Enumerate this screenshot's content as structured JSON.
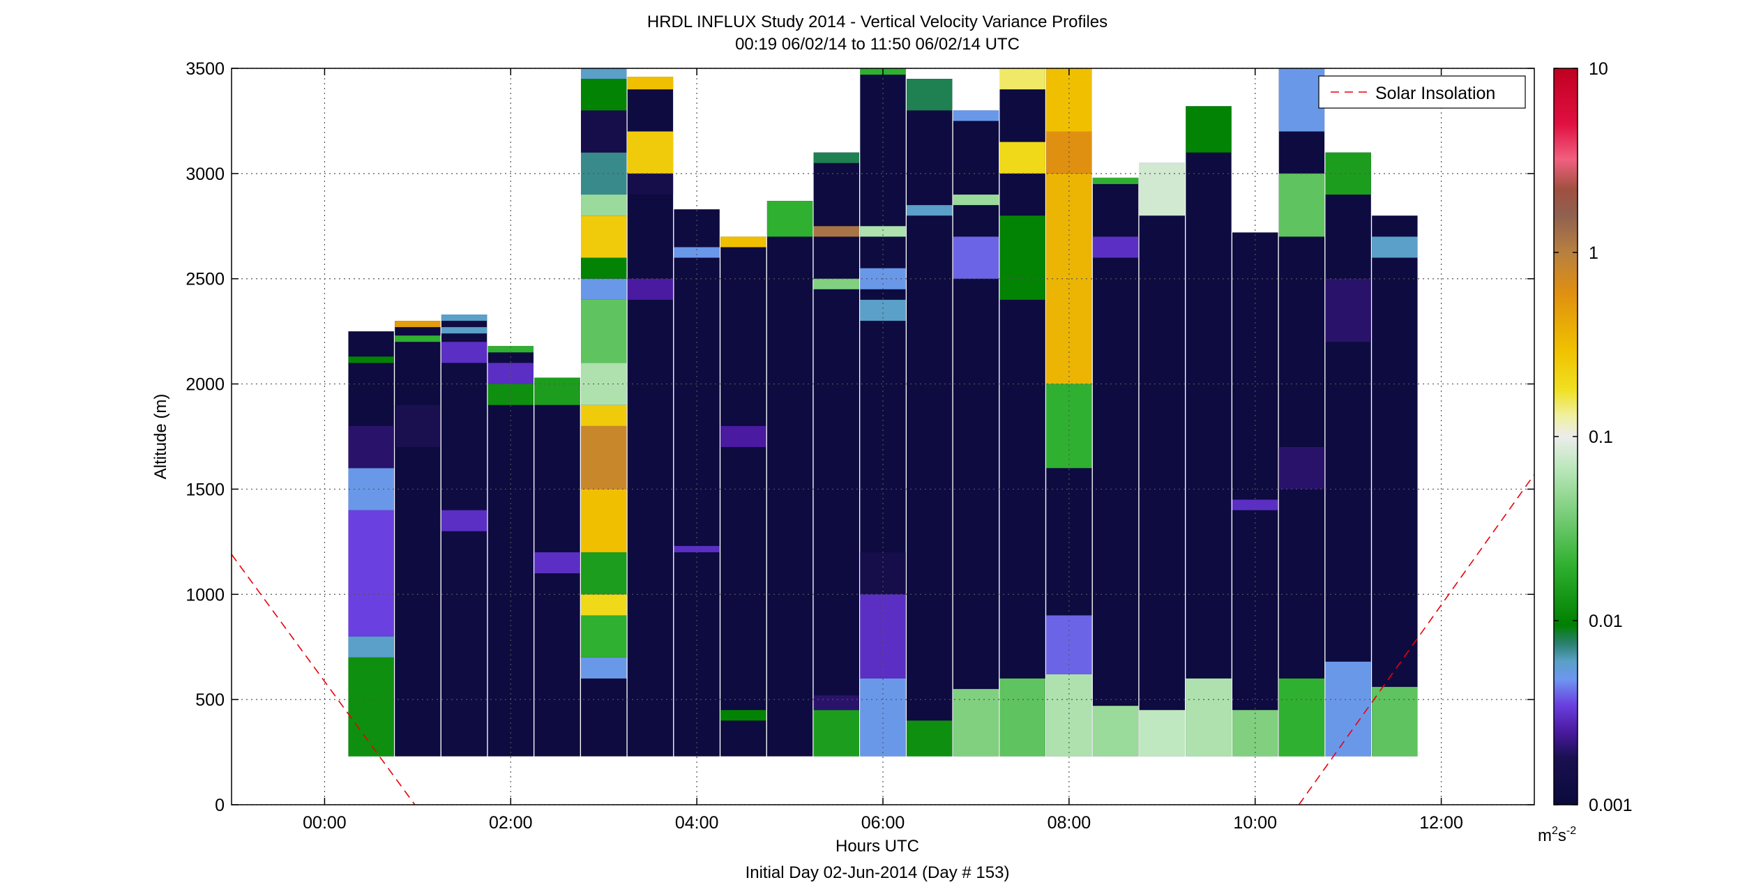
{
  "chart_data": {
    "type": "heatmap",
    "title": "HRDL INFLUX Study 2014 - Vertical Velocity Variance Profiles",
    "subtitle": "00:19 06/02/14 to 11:50 06/02/14  UTC",
    "xlabel": "Hours UTC",
    "xlabel2": "Initial Day 02-Jun-2014 (Day # 153)",
    "ylabel": "Altitude (m)",
    "xlim": [
      -1,
      13
    ],
    "ylim": [
      0,
      3500
    ],
    "x_ticks": [
      {
        "value": 0,
        "label": "00:00"
      },
      {
        "value": 2,
        "label": "02:00"
      },
      {
        "value": 4,
        "label": "04:00"
      },
      {
        "value": 6,
        "label": "06:00"
      },
      {
        "value": 8,
        "label": "08:00"
      },
      {
        "value": 10,
        "label": "10:00"
      },
      {
        "value": 12,
        "label": "12:00"
      }
    ],
    "y_ticks": [
      {
        "value": 0,
        "label": "0"
      },
      {
        "value": 500,
        "label": "500"
      },
      {
        "value": 1000,
        "label": "1000"
      },
      {
        "value": 1500,
        "label": "1500"
      },
      {
        "value": 2000,
        "label": "2000"
      },
      {
        "value": 2500,
        "label": "2500"
      },
      {
        "value": 3000,
        "label": "3000"
      },
      {
        "value": 3500,
        "label": "3500"
      }
    ],
    "grid": true,
    "legend": {
      "placement": "top-right",
      "entries": [
        "Solar Insolation"
      ],
      "color": "#e8000b",
      "style": "dashed"
    },
    "colorbar": {
      "scale": "log",
      "range": [
        0.001,
        10
      ],
      "ticks": [
        {
          "value": 0.001,
          "label": "0.001"
        },
        {
          "value": 0.01,
          "label": "0.01"
        },
        {
          "value": 0.1,
          "label": "0.1"
        },
        {
          "value": 1,
          "label": "1"
        },
        {
          "value": 10,
          "label": "10"
        }
      ],
      "unit_base": "m",
      "unit_exp1": "2",
      "unit_mid": "s",
      "unit_exp2": "-2",
      "stops": [
        [
          0.001,
          "#0a0a3c"
        ],
        [
          0.0018,
          "#1a1050"
        ],
        [
          0.0025,
          "#4a1aa0"
        ],
        [
          0.0035,
          "#6a40e0"
        ],
        [
          0.0048,
          "#6e96f0"
        ],
        [
          0.006,
          "#5aa0c8"
        ],
        [
          0.0075,
          "#2a8070"
        ],
        [
          0.0095,
          "#008000"
        ],
        [
          0.02,
          "#30b030"
        ],
        [
          0.04,
          "#80d080"
        ],
        [
          0.07,
          "#c0e8c0"
        ],
        [
          0.1,
          "#ececec"
        ],
        [
          0.13,
          "#f0f0a0"
        ],
        [
          0.18,
          "#f0e020"
        ],
        [
          0.3,
          "#f0c000"
        ],
        [
          0.6,
          "#e09010"
        ],
        [
          1.0,
          "#b88040"
        ],
        [
          1.6,
          "#906050"
        ],
        [
          2.2,
          "#a05040"
        ],
        [
          3.2,
          "#f06080"
        ],
        [
          5.0,
          "#e01040"
        ],
        [
          10,
          "#c00020"
        ]
      ]
    },
    "profiles": [
      {
        "time": 0.5,
        "bottom": 230,
        "top": 2250,
        "base": 0.0011,
        "cells": [
          [
            230,
            700,
            0.012
          ],
          [
            700,
            800,
            0.006
          ],
          [
            800,
            1400,
            0.0035
          ],
          [
            1400,
            1600,
            0.005
          ],
          [
            1600,
            1800,
            0.002
          ],
          [
            2100,
            2130,
            0.01
          ]
        ]
      },
      {
        "time": 1.0,
        "bottom": 230,
        "top": 2300,
        "base": 0.0011,
        "cells": [
          [
            1700,
            1900,
            0.0018
          ],
          [
            2200,
            2230,
            0.02
          ],
          [
            2270,
            2300,
            0.5
          ]
        ]
      },
      {
        "time": 1.5,
        "bottom": 230,
        "top": 2330,
        "base": 0.0012,
        "cells": [
          [
            1300,
            1400,
            0.003
          ],
          [
            2100,
            2200,
            0.003
          ],
          [
            2240,
            2270,
            0.006
          ],
          [
            2300,
            2330,
            0.006
          ]
        ]
      },
      {
        "time": 2.0,
        "bottom": 230,
        "top": 2180,
        "base": 0.0011,
        "cells": [
          [
            1900,
            2000,
            0.012
          ],
          [
            2000,
            2100,
            0.003
          ],
          [
            2150,
            2180,
            0.02
          ]
        ]
      },
      {
        "time": 2.5,
        "bottom": 230,
        "top": 2030,
        "base": 0.0011,
        "cells": [
          [
            1100,
            1200,
            0.003
          ],
          [
            1900,
            2030,
            0.015
          ]
        ]
      },
      {
        "time": 3.0,
        "bottom": 230,
        "top": 3500,
        "base": 0.0011,
        "cells": [
          [
            600,
            700,
            0.005
          ],
          [
            700,
            900,
            0.02
          ],
          [
            900,
            1000,
            0.2
          ],
          [
            1000,
            1200,
            0.015
          ],
          [
            1200,
            1500,
            0.3
          ],
          [
            1500,
            1800,
            0.8
          ],
          [
            1800,
            1900,
            0.25
          ],
          [
            1900,
            2100,
            0.06
          ],
          [
            2100,
            2400,
            0.03
          ],
          [
            2400,
            2500,
            0.005
          ],
          [
            2500,
            2600,
            0.01
          ],
          [
            2600,
            2800,
            0.25
          ],
          [
            2800,
            2900,
            0.05
          ],
          [
            2900,
            3100,
            0.007
          ],
          [
            3100,
            3300,
            0.0015
          ],
          [
            3300,
            3450,
            0.01
          ],
          [
            3450,
            3500,
            0.006
          ]
        ]
      },
      {
        "time": 3.5,
        "bottom": 230,
        "top": 3460,
        "base": 0.0011,
        "cells": [
          [
            2400,
            2500,
            0.0025
          ],
          [
            2900,
            3000,
            0.0015
          ],
          [
            3000,
            3200,
            0.25
          ],
          [
            3400,
            3460,
            0.3
          ]
        ]
      },
      {
        "time": 4.0,
        "bottom": 230,
        "top": 2830,
        "base": 0.0011,
        "cells": [
          [
            1200,
            1230,
            0.003
          ],
          [
            2600,
            2650,
            0.005
          ]
        ]
      },
      {
        "time": 4.5,
        "bottom": 230,
        "top": 2700,
        "base": 0.0011,
        "cells": [
          [
            400,
            450,
            0.01
          ],
          [
            1700,
            1800,
            0.0025
          ],
          [
            2650,
            2700,
            0.3
          ]
        ]
      },
      {
        "time": 5.0,
        "bottom": 230,
        "top": 2870,
        "base": 0.0011,
        "cells": [
          [
            2700,
            2870,
            0.02
          ]
        ]
      },
      {
        "time": 5.5,
        "bottom": 230,
        "top": 3100,
        "base": 0.0011,
        "cells": [
          [
            230,
            450,
            0.015
          ],
          [
            450,
            520,
            0.002
          ],
          [
            2450,
            2500,
            0.04
          ],
          [
            2700,
            2750,
            1.2
          ],
          [
            3050,
            3100,
            0.008
          ]
        ]
      },
      {
        "time": 6.0,
        "bottom": 230,
        "top": 3500,
        "base": 0.0011,
        "cells": [
          [
            230,
            600,
            0.005
          ],
          [
            600,
            1000,
            0.003
          ],
          [
            1000,
            1200,
            0.0015
          ],
          [
            2300,
            2400,
            0.006
          ],
          [
            2450,
            2550,
            0.005
          ],
          [
            2700,
            2750,
            0.06
          ],
          [
            3470,
            3500,
            0.02
          ]
        ]
      },
      {
        "time": 6.5,
        "bottom": 230,
        "top": 3450,
        "base": 0.0011,
        "cells": [
          [
            230,
            400,
            0.012
          ],
          [
            2800,
            2850,
            0.006
          ],
          [
            3300,
            3450,
            0.008
          ]
        ]
      },
      {
        "time": 7.0,
        "bottom": 230,
        "top": 3300,
        "base": 0.0011,
        "cells": [
          [
            230,
            550,
            0.04
          ],
          [
            2500,
            2700,
            0.004
          ],
          [
            2850,
            2900,
            0.05
          ],
          [
            3250,
            3300,
            0.005
          ]
        ]
      },
      {
        "time": 7.5,
        "bottom": 230,
        "top": 3500,
        "base": 0.0011,
        "cells": [
          [
            230,
            600,
            0.03
          ],
          [
            2400,
            2800,
            0.01
          ],
          [
            3000,
            3150,
            0.2
          ],
          [
            3400,
            3500,
            0.15
          ]
        ]
      },
      {
        "time": 8.0,
        "bottom": 230,
        "top": 3500,
        "base": 0.0011,
        "cells": [
          [
            230,
            620,
            0.06
          ],
          [
            620,
            900,
            0.004
          ],
          [
            1600,
            2000,
            0.02
          ],
          [
            2000,
            3000,
            0.35
          ],
          [
            3000,
            3200,
            0.6
          ],
          [
            3200,
            3500,
            0.3
          ]
        ]
      },
      {
        "time": 8.5,
        "bottom": 230,
        "top": 2980,
        "base": 0.0011,
        "cells": [
          [
            230,
            470,
            0.05
          ],
          [
            2600,
            2700,
            0.003
          ],
          [
            2950,
            2980,
            0.02
          ]
        ]
      },
      {
        "time": 9.0,
        "bottom": 230,
        "top": 3050,
        "base": 0.0011,
        "cells": [
          [
            230,
            450,
            0.07
          ],
          [
            2800,
            3050,
            0.08
          ]
        ]
      },
      {
        "time": 9.5,
        "bottom": 230,
        "top": 3320,
        "base": 0.0011,
        "cells": [
          [
            230,
            600,
            0.06
          ],
          [
            3100,
            3320,
            0.01
          ]
        ]
      },
      {
        "time": 10.0,
        "bottom": 230,
        "top": 2720,
        "base": 0.0011,
        "cells": [
          [
            230,
            450,
            0.04
          ],
          [
            1400,
            1450,
            0.003
          ]
        ]
      },
      {
        "time": 10.5,
        "bottom": 230,
        "top": 3500,
        "base": 0.0011,
        "cells": [
          [
            230,
            600,
            0.02
          ],
          [
            1500,
            1700,
            0.002
          ],
          [
            2700,
            3000,
            0.03
          ],
          [
            3200,
            3500,
            0.005
          ]
        ]
      },
      {
        "time": 11.0,
        "bottom": 230,
        "top": 3100,
        "base": 0.0011,
        "cells": [
          [
            230,
            680,
            0.005
          ],
          [
            2200,
            2500,
            0.002
          ],
          [
            2900,
            3100,
            0.015
          ]
        ]
      },
      {
        "time": 11.5,
        "bottom": 230,
        "top": 2800,
        "base": 0.0011,
        "cells": [
          [
            230,
            560,
            0.03
          ],
          [
            2600,
            2700,
            0.006
          ]
        ]
      }
    ],
    "solar_insolation_lines": [
      {
        "x": [
          -1,
          0.97
        ],
        "y": [
          1190,
          0
        ]
      },
      {
        "x": [
          10.47,
          13
        ],
        "y": [
          0,
          1570
        ]
      }
    ]
  }
}
